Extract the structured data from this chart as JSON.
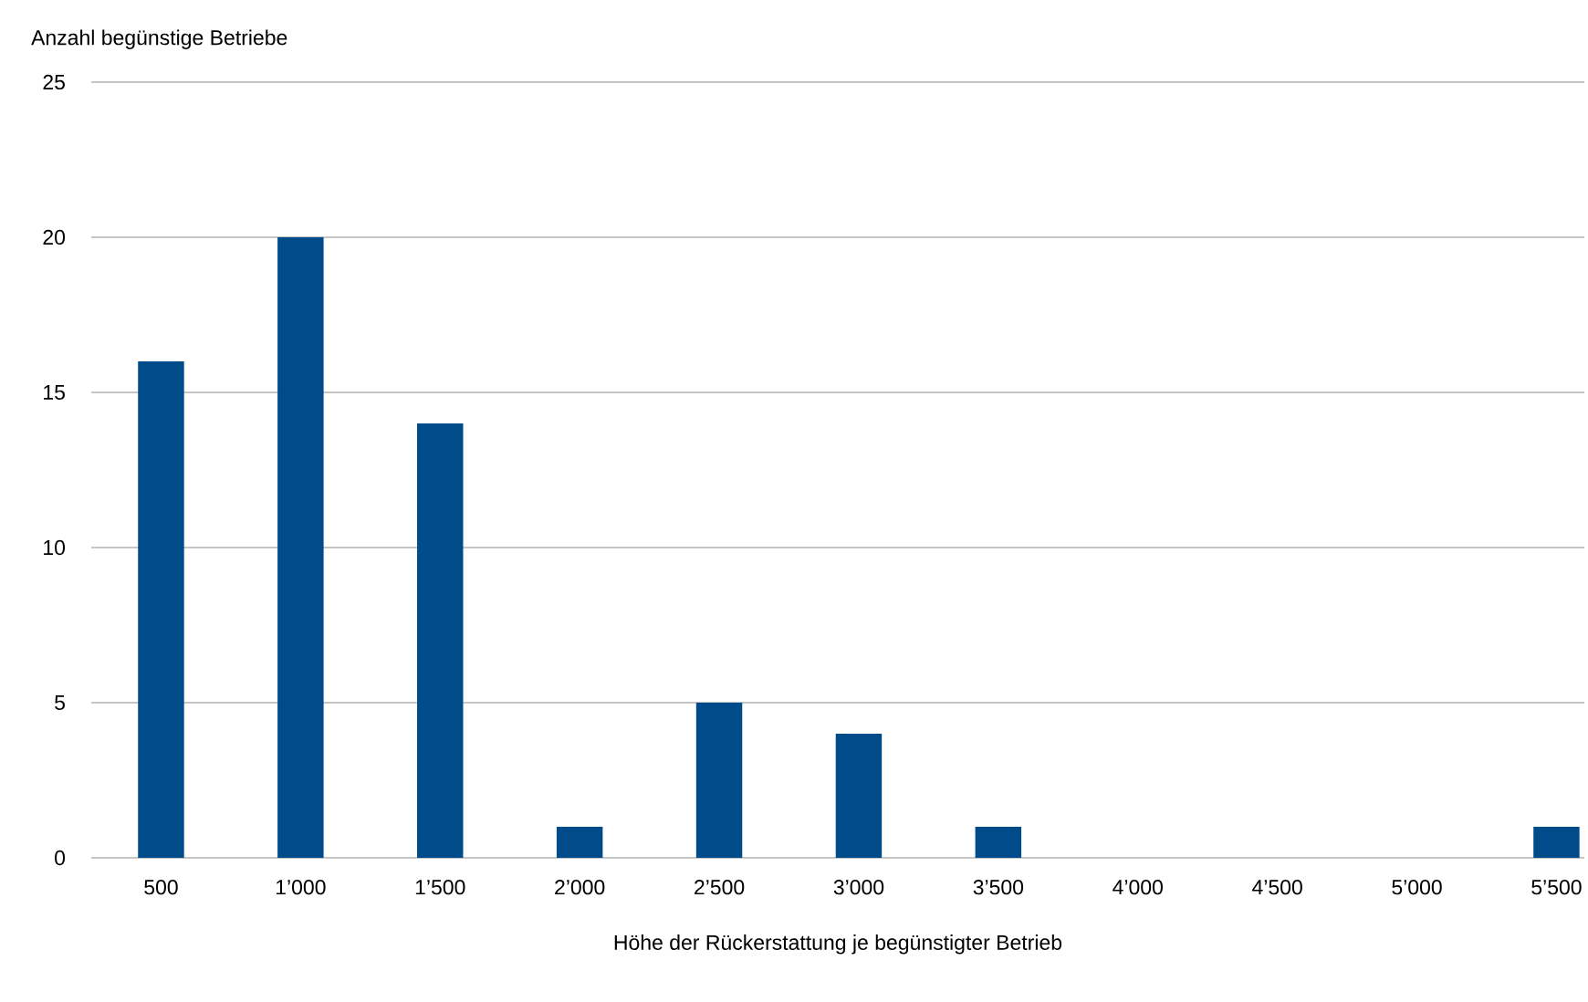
{
  "chart_data": {
    "type": "bar",
    "xlabel": "Höhe der Rückerstattung je begünstigter Betrieb",
    "ylabel": "Anzahl begünstige Betriebe",
    "categories": [
      "500",
      "1’000",
      "1’500",
      "2’000",
      "2’500",
      "3’000",
      "3’500",
      "4’000",
      "4’500",
      "5’000",
      "5’500"
    ],
    "values": [
      16,
      20,
      14,
      1,
      5,
      4,
      1,
      0,
      0,
      0,
      1
    ],
    "color": "#004c8b",
    "ylim": [
      0,
      25
    ],
    "yticks": [
      0,
      5,
      10,
      15,
      20,
      25
    ],
    "grid": "y"
  }
}
